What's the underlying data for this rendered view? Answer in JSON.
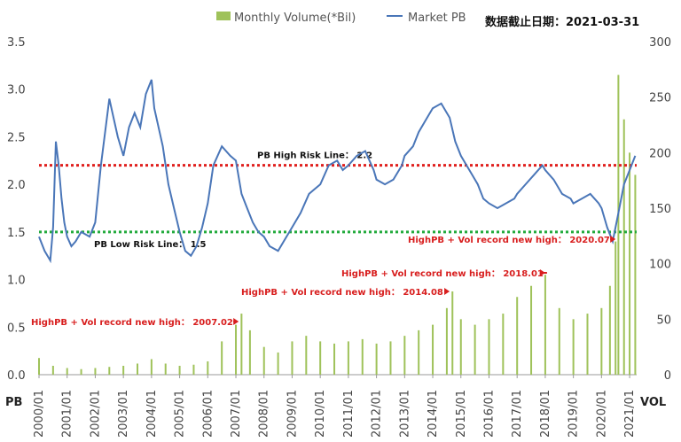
{
  "chart_data": {
    "type": "line",
    "legend": {
      "volume_label": "Monthly Volume(*Bil)",
      "pb_label": "Market PB",
      "placement": "top"
    },
    "date_stamp": "数据截止日期：2021-03-31",
    "left_axis": {
      "name": "PB",
      "ylim": [
        0,
        3.5
      ],
      "ticks": [
        "0.0",
        "0.5",
        "1.0",
        "1.5",
        "2.0",
        "2.5",
        "3.0",
        "3.5"
      ]
    },
    "right_axis": {
      "name": "VOL",
      "ylim": [
        0,
        300
      ],
      "ticks": [
        "0",
        "50",
        "100",
        "150",
        "200",
        "250",
        "300"
      ]
    },
    "x_ticks": [
      "2000/01",
      "2001/01",
      "2002/01",
      "2003/01",
      "2004/01",
      "2005/01",
      "2006/01",
      "2007/01",
      "2008/01",
      "2009/01",
      "2010/01",
      "2011/01",
      "2012/01",
      "2013/01",
      "2014/01",
      "2015/01",
      "2016/01",
      "2017/01",
      "2018/01",
      "2019/01",
      "2020/01",
      "2021/01"
    ],
    "x_range": [
      2000.0,
      2021.25
    ],
    "colors": {
      "pb_line": "#4a76b8",
      "volume_bar": "#9fc25a",
      "high_risk": "#e0201e",
      "low_risk": "#22aa3c",
      "annotation": "#d81e1e"
    },
    "reference_lines": [
      {
        "axis": "PB",
        "value": 2.2,
        "label": "PB High Risk Line： 2.2",
        "color": "#e0201e"
      },
      {
        "axis": "PB",
        "value": 1.5,
        "label": "PB Low Risk Line： 1.5",
        "color": "#22aa3c"
      }
    ],
    "annotations": [
      {
        "text": "HighPB + Vol record new high： 2007.02",
        "x": 2007.1
      },
      {
        "text": "HighPB + Vol record new high： 2014.08",
        "x": 2014.6
      },
      {
        "text": "HighPB + Vol record new high： 2018.01",
        "x": 2018.0
      },
      {
        "text": "HighPB + Vol record new high： 2020.07",
        "x": 2020.5
      }
    ],
    "series": [
      {
        "name": "Market PB",
        "kind": "line",
        "x": [
          2000.0,
          2000.2,
          2000.4,
          2000.5,
          2000.6,
          2000.7,
          2000.8,
          2000.9,
          2001.0,
          2001.15,
          2001.3,
          2001.5,
          2001.8,
          2002.0,
          2002.2,
          2002.5,
          2002.8,
          2003.0,
          2003.2,
          2003.4,
          2003.6,
          2003.8,
          2004.0,
          2004.1,
          2004.25,
          2004.4,
          2004.6,
          2004.8,
          2005.0,
          2005.2,
          2005.4,
          2005.6,
          2005.8,
          2006.0,
          2006.2,
          2006.5,
          2006.8,
          2007.0,
          2007.2,
          2007.4,
          2007.6,
          2007.8,
          2008.0,
          2008.2,
          2008.5,
          2008.7,
          2009.0,
          2009.3,
          2009.6,
          2009.8,
          2010.0,
          2010.3,
          2010.6,
          2010.8,
          2011.0,
          2011.3,
          2011.6,
          2011.9,
          2012.0,
          2012.3,
          2012.6,
          2012.9,
          2013.0,
          2013.3,
          2013.5,
          2013.8,
          2014.0,
          2014.3,
          2014.6,
          2014.8,
          2015.0,
          2015.4,
          2015.6,
          2015.8,
          2016.0,
          2016.3,
          2016.6,
          2016.9,
          2017.0,
          2017.3,
          2017.6,
          2017.9,
          2018.0,
          2018.3,
          2018.6,
          2018.9,
          2019.0,
          2019.3,
          2019.6,
          2019.9,
          2020.0,
          2020.2,
          2020.4,
          2020.6,
          2020.8,
          2021.0,
          2021.2
        ],
        "values": [
          1.45,
          1.3,
          1.2,
          1.55,
          2.45,
          2.2,
          1.85,
          1.6,
          1.45,
          1.35,
          1.4,
          1.5,
          1.45,
          1.6,
          2.2,
          2.9,
          2.5,
          2.3,
          2.6,
          2.75,
          2.6,
          2.95,
          3.1,
          2.8,
          2.6,
          2.4,
          2.0,
          1.75,
          1.5,
          1.3,
          1.25,
          1.35,
          1.55,
          1.8,
          2.2,
          2.4,
          2.3,
          2.25,
          1.9,
          1.75,
          1.6,
          1.5,
          1.45,
          1.35,
          1.3,
          1.4,
          1.55,
          1.7,
          1.9,
          1.95,
          2.0,
          2.2,
          2.25,
          2.15,
          2.2,
          2.3,
          2.35,
          2.15,
          2.05,
          2.0,
          2.05,
          2.2,
          2.3,
          2.4,
          2.55,
          2.7,
          2.8,
          2.85,
          2.7,
          2.45,
          2.3,
          2.1,
          2.0,
          1.85,
          1.8,
          1.75,
          1.8,
          1.85,
          1.9,
          2.0,
          2.1,
          2.2,
          2.15,
          2.05,
          1.9,
          1.85,
          1.8,
          1.85,
          1.9,
          1.8,
          1.75,
          1.55,
          1.4,
          1.7,
          2.0,
          2.15,
          2.3
        ]
      },
      {
        "name": "Monthly Volume(*Bil)",
        "kind": "bar",
        "x": [
          2000.0,
          2000.5,
          2001.0,
          2001.5,
          2002.0,
          2002.5,
          2003.0,
          2003.5,
          2004.0,
          2004.5,
          2005.0,
          2005.5,
          2006.0,
          2006.5,
          2007.0,
          2007.2,
          2007.5,
          2008.0,
          2008.5,
          2009.0,
          2009.5,
          2010.0,
          2010.5,
          2011.0,
          2011.5,
          2012.0,
          2012.5,
          2013.0,
          2013.5,
          2014.0,
          2014.5,
          2014.7,
          2015.0,
          2015.5,
          2016.0,
          2016.5,
          2017.0,
          2017.5,
          2018.0,
          2018.5,
          2019.0,
          2019.5,
          2020.0,
          2020.3,
          2020.5,
          2020.6,
          2020.8,
          2021.0,
          2021.2
        ],
        "values": [
          15,
          8,
          6,
          5,
          6,
          7,
          8,
          10,
          14,
          10,
          8,
          9,
          12,
          30,
          45,
          55,
          40,
          25,
          20,
          30,
          35,
          30,
          28,
          30,
          32,
          28,
          30,
          35,
          40,
          45,
          60,
          75,
          50,
          45,
          50,
          55,
          70,
          80,
          90,
          60,
          50,
          55,
          60,
          80,
          120,
          270,
          230,
          200,
          180
        ]
      }
    ]
  }
}
